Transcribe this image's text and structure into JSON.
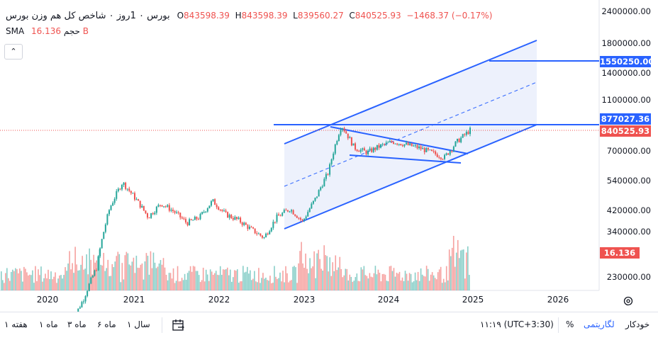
{
  "header": {
    "title": "بورس ۰ 1روز ۰ شاخص کل هم وزن بورس",
    "open_label": "O",
    "open": "843598.39",
    "high_label": "H",
    "high": "843598.39",
    "low_label": "L",
    "low": "839560.27",
    "close_label": "C",
    "close": "840525.93",
    "change": "−1468.37 (−0.17%)"
  },
  "volume_legend": {
    "label": "SMA حجم",
    "value": "16.136 B"
  },
  "collapse_icon": "⌃",
  "price_axis": {
    "ticks": [
      "2400000.00",
      "1800000.00",
      "1400000.00",
      "1100000.00",
      "700000.00",
      "540000.00",
      "420000.00",
      "340000.00",
      "230000.00"
    ],
    "target_badge": "1550250.00",
    "resistance_badge": "877027.36",
    "last_price_badge": "840525.93",
    "volume_badge": "16.136 B"
  },
  "time_axis": {
    "ticks": [
      "2020",
      "2021",
      "2022",
      "2023",
      "2024",
      "2025",
      "2026"
    ]
  },
  "bottom_toolbar": {
    "ranges": [
      "هفته ۱",
      "ماه ۱",
      "ماه ۳",
      "ماه ۶",
      "سال ۱"
    ],
    "calendar_icon": "calendar-range-icon",
    "time": "۱۱:۱۹ (UTC+3:30)",
    "percent": "%",
    "log": "لگاریتمی",
    "auto": "خودکار"
  },
  "colors": {
    "up": "#26a69a",
    "down": "#ef5350",
    "drawing": "#2962ff",
    "channel_fill": "#e8edfb"
  },
  "chart_data": {
    "type": "candlestick",
    "title": "",
    "scale": "log",
    "x": [
      "2020-01",
      "2020-03",
      "2020-05",
      "2020-07",
      "2020-08",
      "2020-09",
      "2020-11",
      "2021-01",
      "2021-03",
      "2021-05",
      "2021-07",
      "2021-09",
      "2021-11",
      "2022-01",
      "2022-03",
      "2022-05",
      "2022-07",
      "2022-09",
      "2022-11",
      "2023-01",
      "2023-03",
      "2023-05",
      "2023-07",
      "2023-09",
      "2023-11",
      "2024-01",
      "2024-03",
      "2024-05",
      "2024-07",
      "2024-09",
      "2024-11",
      "2024-12"
    ],
    "close": [
      150000,
      190000,
      250000,
      420000,
      530000,
      460000,
      390000,
      440000,
      410000,
      370000,
      390000,
      450000,
      400000,
      380000,
      350000,
      325000,
      390000,
      420000,
      375000,
      460000,
      580000,
      880000,
      720000,
      690000,
      730000,
      760000,
      740000,
      720000,
      690000,
      660000,
      760000,
      840525.93
    ],
    "volume_sma": "16.136 B",
    "horizontal_levels": [
      1550250.0,
      877027.36,
      840525.93
    ],
    "ylim": [
      200000,
      2400000
    ]
  }
}
